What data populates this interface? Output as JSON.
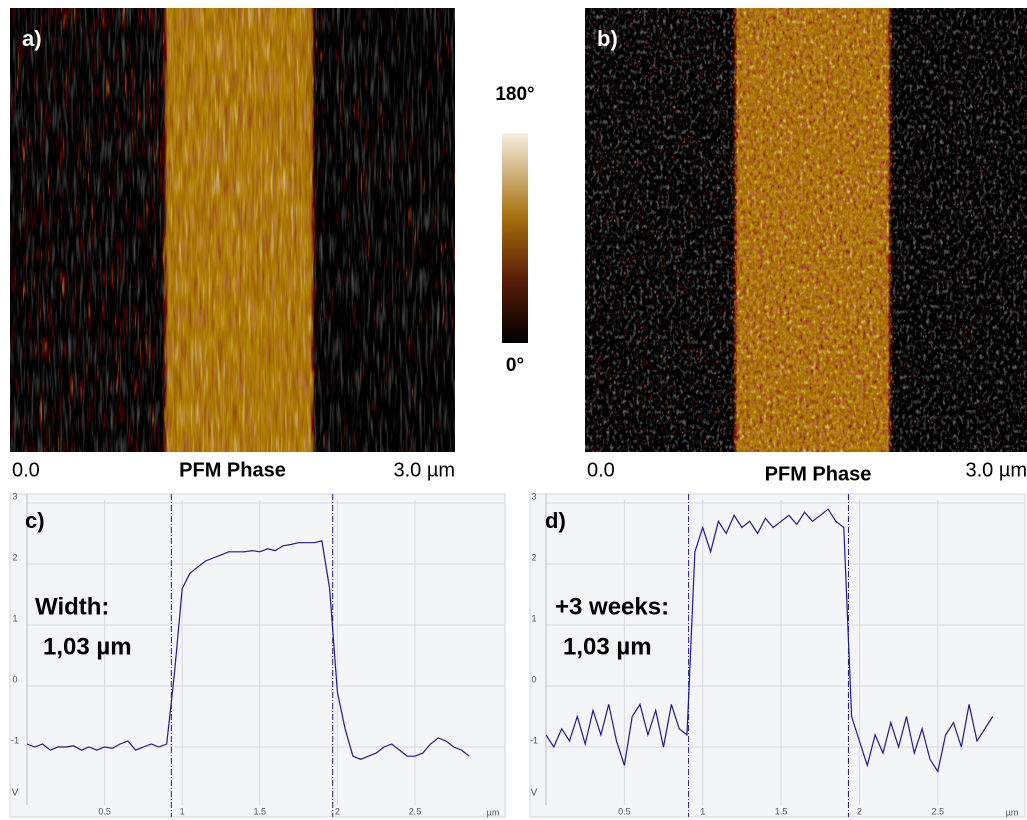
{
  "chart_data": [
    {
      "type": "image",
      "label": "a)",
      "xlabel": "PFM Phase",
      "xlim": [
        0,
        3.0
      ],
      "xticks": [
        {
          "value": 0,
          "label": "0.0"
        },
        {
          "value": 3.0,
          "label": "3.0 µm"
        }
      ]
    },
    {
      "type": "image",
      "label": "b)",
      "xlabel": "PFM Phase",
      "xlim": [
        0,
        3.0
      ],
      "xticks": [
        {
          "value": 0,
          "label": "0.0"
        },
        {
          "value": 3.0,
          "label": "3.0 µm"
        }
      ]
    },
    {
      "type": "line",
      "label": "c)",
      "annotations": [
        "Width:",
        "1,03 µm"
      ],
      "xlabel": "µm",
      "ylabel": "V",
      "color": "#1c1c8e",
      "xlim": [
        0,
        3.08
      ],
      "ylim": [
        -1.95,
        3.05
      ],
      "xticks": [
        0.5,
        1,
        1.5,
        2,
        2.5
      ],
      "yticks": [
        3,
        2,
        1,
        0,
        -1
      ],
      "grid": true,
      "vlines": [
        0.93,
        1.97
      ],
      "x": [
        0,
        0.05,
        0.1,
        0.15,
        0.2,
        0.25,
        0.3,
        0.35,
        0.4,
        0.45,
        0.5,
        0.55,
        0.6,
        0.65,
        0.7,
        0.75,
        0.8,
        0.85,
        0.9,
        0.95,
        1.0,
        1.05,
        1.1,
        1.15,
        1.2,
        1.25,
        1.3,
        1.35,
        1.4,
        1.45,
        1.5,
        1.55,
        1.6,
        1.65,
        1.7,
        1.75,
        1.8,
        1.85,
        1.9,
        1.95,
        2.0,
        2.05,
        2.1,
        2.15,
        2.2,
        2.25,
        2.3,
        2.35,
        2.4,
        2.45,
        2.5,
        2.55,
        2.6,
        2.65,
        2.7,
        2.75,
        2.8,
        2.85
      ],
      "values": [
        -0.95,
        -1.0,
        -0.95,
        -1.05,
        -1.0,
        -1.0,
        -0.98,
        -1.05,
        -1.0,
        -1.05,
        -1.0,
        -1.02,
        -0.95,
        -0.9,
        -1.05,
        -1.0,
        -0.95,
        -1.0,
        -0.95,
        0.2,
        1.6,
        1.85,
        1.95,
        2.05,
        2.1,
        2.15,
        2.2,
        2.2,
        2.2,
        2.22,
        2.2,
        2.25,
        2.22,
        2.3,
        2.32,
        2.35,
        2.35,
        2.35,
        2.38,
        1.6,
        -0.1,
        -0.7,
        -1.15,
        -1.2,
        -1.15,
        -1.1,
        -1.0,
        -0.95,
        -1.05,
        -1.15,
        -1.15,
        -1.1,
        -0.95,
        -0.85,
        -0.9,
        -1.0,
        -1.05,
        -1.15
      ]
    },
    {
      "type": "line",
      "label": "d)",
      "annotations": [
        "+3 weeks:",
        "1,03 µm"
      ],
      "xlabel": "µm",
      "ylabel": "V",
      "color": "#1c1c8e",
      "xlim": [
        0,
        3.05
      ],
      "ylim": [
        -1.95,
        3.05
      ],
      "xticks": [
        0.5,
        1,
        1.5,
        2,
        2.5
      ],
      "yticks": [
        3,
        2,
        1,
        0,
        -1
      ],
      "grid": true,
      "vlines": [
        0.91,
        1.93
      ],
      "x": [
        0,
        0.05,
        0.1,
        0.15,
        0.2,
        0.25,
        0.3,
        0.35,
        0.4,
        0.45,
        0.5,
        0.55,
        0.6,
        0.65,
        0.7,
        0.75,
        0.8,
        0.85,
        0.9,
        0.95,
        1.0,
        1.05,
        1.1,
        1.15,
        1.2,
        1.25,
        1.3,
        1.35,
        1.4,
        1.45,
        1.5,
        1.55,
        1.6,
        1.65,
        1.7,
        1.75,
        1.8,
        1.85,
        1.9,
        1.95,
        2.0,
        2.05,
        2.1,
        2.15,
        2.2,
        2.25,
        2.3,
        2.35,
        2.4,
        2.45,
        2.5,
        2.55,
        2.6,
        2.65,
        2.7,
        2.75,
        2.8,
        2.85
      ],
      "values": [
        -0.8,
        -1.0,
        -0.7,
        -0.9,
        -0.5,
        -0.95,
        -0.4,
        -0.8,
        -0.3,
        -0.9,
        -1.3,
        -0.5,
        -0.3,
        -0.8,
        -0.4,
        -1.0,
        -0.3,
        -0.7,
        -0.8,
        2.2,
        2.6,
        2.2,
        2.7,
        2.5,
        2.8,
        2.6,
        2.7,
        2.5,
        2.75,
        2.6,
        2.7,
        2.8,
        2.65,
        2.85,
        2.7,
        2.8,
        2.9,
        2.7,
        2.6,
        -0.5,
        -0.9,
        -1.3,
        -0.8,
        -1.1,
        -0.6,
        -1.0,
        -0.5,
        -1.1,
        -0.7,
        -1.2,
        -1.4,
        -0.8,
        -0.6,
        -1.0,
        -0.3,
        -0.9,
        -0.7,
        -0.5
      ]
    }
  ],
  "colorbar": {
    "lim": [
      0,
      180
    ],
    "ticks": [
      {
        "value": 0,
        "label": "0°"
      },
      {
        "value": 180,
        "label": "180°"
      }
    ]
  }
}
